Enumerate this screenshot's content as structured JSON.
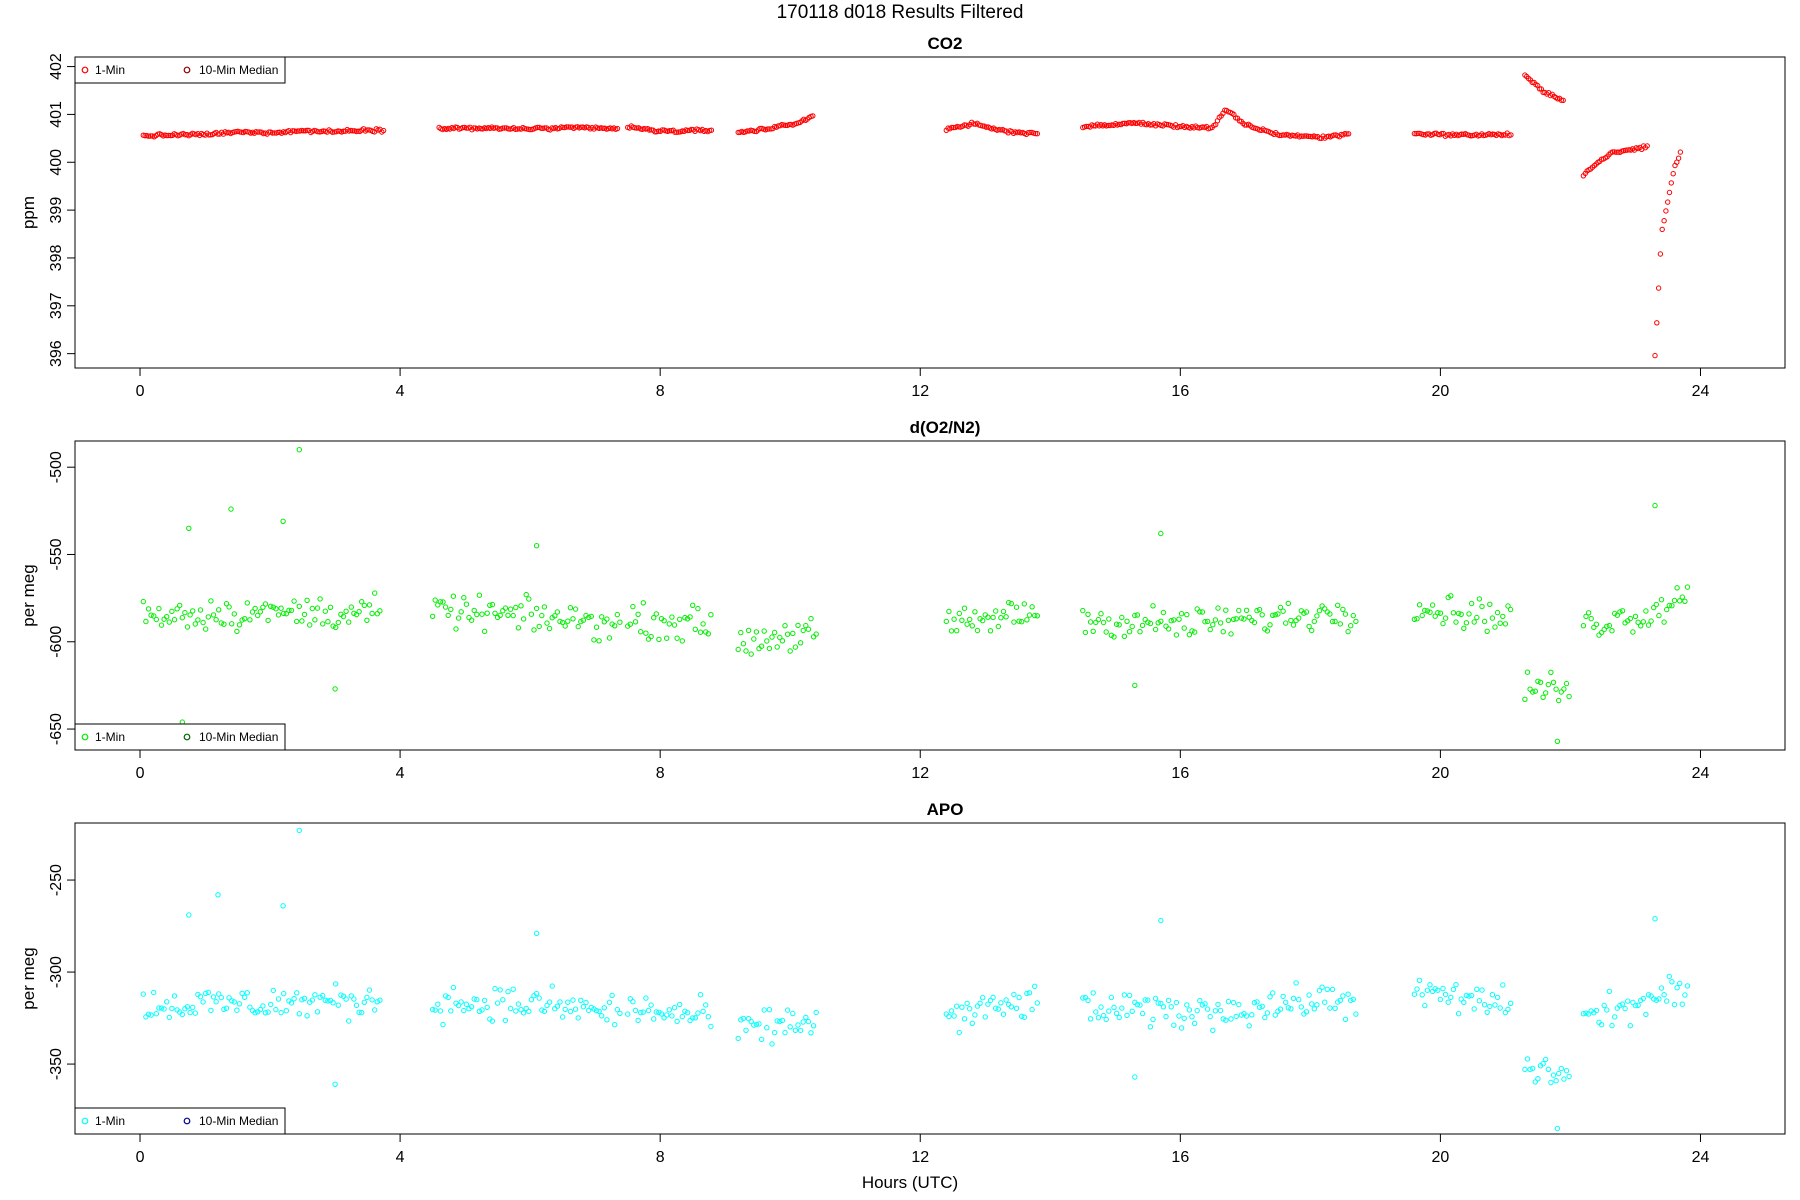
{
  "figure": {
    "title": "170118   d018   Results Filtered",
    "xlabel": "Hours (UTC)"
  },
  "chart_data": [
    {
      "type": "scatter",
      "title": "CO2",
      "ylabel": "ppm",
      "xlim": [
        -1,
        25.3
      ],
      "ylim": [
        395.7,
        402.2
      ],
      "xticks": [
        0,
        4,
        8,
        12,
        16,
        20,
        24
      ],
      "yticks": [
        396,
        397,
        398,
        399,
        400,
        401,
        402
      ],
      "legend_position": "top-left",
      "series": [
        {
          "name": "1-Min",
          "color": "#ff0000",
          "segments": [
            {
              "x": [
                0.05,
                0.5,
                1.0,
                1.5,
                2.0,
                2.5,
                3.0,
                3.5,
                3.75
              ],
              "y": [
                400.55,
                400.57,
                400.58,
                400.63,
                400.62,
                400.66,
                400.64,
                400.68,
                400.66
              ]
            },
            {
              "x": [
                4.6,
                5.2,
                6.0,
                6.8,
                7.35
              ],
              "y": [
                400.72,
                400.71,
                400.7,
                400.72,
                400.7
              ]
            },
            {
              "x": [
                7.5,
                7.9,
                8.3,
                8.8
              ],
              "y": [
                400.74,
                400.66,
                400.65,
                400.67
              ]
            },
            {
              "x": [
                9.2,
                9.7,
                9.8,
                10.1,
                10.35
              ],
              "y": [
                400.63,
                400.7,
                400.76,
                400.8,
                400.98
              ]
            },
            {
              "x": [
                12.4,
                12.8,
                13.3,
                13.8
              ],
              "y": [
                400.7,
                400.8,
                400.65,
                400.6
              ]
            },
            {
              "x": [
                14.5,
                15.3,
                16.0,
                16.5,
                16.7,
                17.0,
                17.5,
                18.2,
                18.6
              ],
              "y": [
                400.74,
                400.82,
                400.75,
                400.72,
                401.1,
                400.78,
                400.58,
                400.52,
                400.6
              ]
            },
            {
              "x": [
                19.6,
                20.3,
                21.1
              ],
              "y": [
                400.6,
                400.57,
                400.58
              ]
            },
            {
              "x": [
                21.3,
                21.6,
                21.9
              ],
              "y": [
                401.82,
                401.45,
                401.3
              ]
            },
            {
              "x": [
                22.2,
                22.6,
                23.2
              ],
              "y": [
                399.75,
                400.18,
                400.33
              ]
            },
            {
              "x": [
                23.3,
                23.4,
                23.6,
                23.7
              ],
              "y": [
                395.95,
                398.5,
                399.9,
                400.22
              ]
            }
          ]
        },
        {
          "name": "10-Min Median",
          "color": "#8b0000",
          "points": []
        }
      ]
    },
    {
      "type": "scatter",
      "title": "d(O2/N2)",
      "ylabel": "per meg",
      "xlim": [
        -1,
        25.3
      ],
      "ylim": [
        -662,
        -485
      ],
      "xticks": [
        0,
        4,
        8,
        12,
        16,
        20,
        24
      ],
      "yticks": [
        -500,
        -550,
        -600,
        -650
      ],
      "legend_position": "bottom-left",
      "series": [
        {
          "name": "1-Min",
          "color": "#00ee00",
          "segments": [
            {
              "x": [
                0.05,
                3.7
              ],
              "y": [
                -584,
                -583
              ]
            },
            {
              "x": [
                4.5,
                6.2,
                7.4
              ],
              "y": [
                -582,
                -586,
                -590
              ]
            },
            {
              "x": [
                7.5,
                8.8
              ],
              "y": [
                -588,
                -590
              ]
            },
            {
              "x": [
                9.2,
                10.4
              ],
              "y": [
                -600,
                -594
              ]
            },
            {
              "x": [
                12.4,
                13.8
              ],
              "y": [
                -592,
                -582
              ]
            },
            {
              "x": [
                14.5,
                16.2,
                18.7
              ],
              "y": [
                -588,
                -590,
                -582
              ]
            },
            {
              "x": [
                19.6,
                21.1
              ],
              "y": [
                -580,
                -586
              ]
            },
            {
              "x": [
                21.3,
                22.0
              ],
              "y": [
                -626,
                -628
              ]
            },
            {
              "x": [
                22.2,
                23.2,
                23.8
              ],
              "y": [
                -590,
                -584,
                -572
              ]
            }
          ],
          "outliers": [
            {
              "x": 2.45,
              "y": -490
            },
            {
              "x": 1.4,
              "y": -524
            },
            {
              "x": 2.2,
              "y": -531
            },
            {
              "x": 0.75,
              "y": -535
            },
            {
              "x": 15.7,
              "y": -538
            },
            {
              "x": 23.3,
              "y": -522
            },
            {
              "x": 6.1,
              "y": -545
            },
            {
              "x": 3.0,
              "y": -627
            },
            {
              "x": 15.3,
              "y": -625
            },
            {
              "x": 21.8,
              "y": -657
            },
            {
              "x": 0.65,
              "y": -646
            }
          ]
        },
        {
          "name": "10-Min Median",
          "color": "#006400",
          "points": []
        }
      ]
    },
    {
      "type": "scatter",
      "title": "APO",
      "ylabel": "per meg",
      "xlim": [
        -1,
        25.3
      ],
      "ylim": [
        -388,
        -219
      ],
      "xticks": [
        0,
        4,
        8,
        12,
        16,
        20,
        24
      ],
      "yticks": [
        -250,
        -300,
        -350
      ],
      "legend_position": "bottom-left",
      "series": [
        {
          "name": "1-Min",
          "color": "#00ffff",
          "segments": [
            {
              "x": [
                0.05,
                3.7
              ],
              "y": [
                -318,
                -316
              ]
            },
            {
              "x": [
                4.5,
                6.2,
                7.4
              ],
              "y": [
                -316,
                -318,
                -322
              ]
            },
            {
              "x": [
                7.5,
                8.8
              ],
              "y": [
                -320,
                -325
              ]
            },
            {
              "x": [
                9.2,
                10.4
              ],
              "y": [
                -332,
                -326
              ]
            },
            {
              "x": [
                12.4,
                13.8
              ],
              "y": [
                -325,
                -315
              ]
            },
            {
              "x": [
                14.5,
                16.2,
                18.7
              ],
              "y": [
                -320,
                -322,
                -314
              ]
            },
            {
              "x": [
                19.6,
                21.1
              ],
              "y": [
                -312,
                -318
              ]
            },
            {
              "x": [
                21.3,
                22.0
              ],
              "y": [
                -352,
                -356
              ]
            },
            {
              "x": [
                22.2,
                23.2,
                23.8
              ],
              "y": [
                -325,
                -316,
                -310
              ]
            }
          ],
          "outliers": [
            {
              "x": 2.45,
              "y": -223
            },
            {
              "x": 1.2,
              "y": -258
            },
            {
              "x": 2.2,
              "y": -264
            },
            {
              "x": 0.75,
              "y": -269
            },
            {
              "x": 15.7,
              "y": -272
            },
            {
              "x": 23.3,
              "y": -271
            },
            {
              "x": 6.1,
              "y": -279
            },
            {
              "x": 3.0,
              "y": -361
            },
            {
              "x": 15.3,
              "y": -357
            },
            {
              "x": 21.8,
              "y": -385
            }
          ]
        },
        {
          "name": "10-Min Median",
          "color": "#00008b",
          "points": []
        }
      ]
    }
  ]
}
